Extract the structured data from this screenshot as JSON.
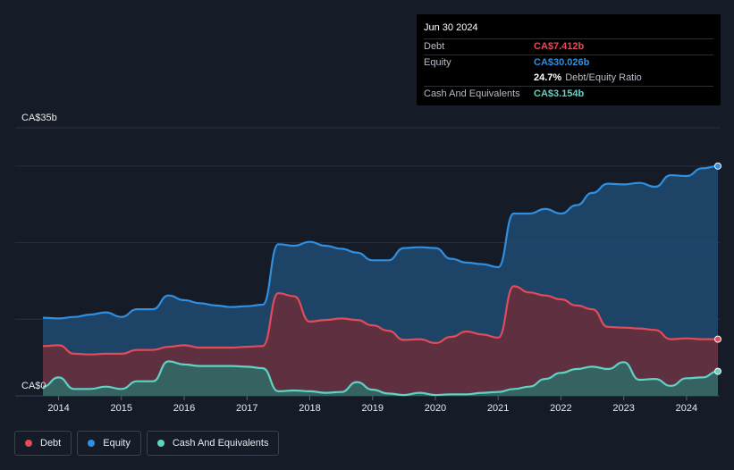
{
  "tooltip": {
    "date": "Jun 30 2024",
    "debt_label": "Debt",
    "debt_value": "CA$7.412b",
    "equity_label": "Equity",
    "equity_value": "CA$30.026b",
    "ratio_pct": "24.7%",
    "ratio_text": "Debt/Equity Ratio",
    "cash_label": "Cash And Equivalents",
    "cash_value": "CA$3.154b"
  },
  "legend": {
    "debt": "Debt",
    "equity": "Equity",
    "cash": "Cash And Equivalents"
  },
  "colors": {
    "debt": "#e24b5a",
    "equity": "#2f8fe0",
    "cash": "#5fd3c4",
    "background": "#151b27"
  },
  "chart_data": {
    "type": "area",
    "y_axis_labels": [
      "CA$35b",
      "CA$0"
    ],
    "ylim": [
      0,
      35
    ],
    "xlim": [
      2013.75,
      2024.5
    ],
    "x_tick_labels": [
      "2014",
      "2015",
      "2016",
      "2017",
      "2018",
      "2019",
      "2020",
      "2021",
      "2022",
      "2023",
      "2024"
    ],
    "x_ticks": [
      2014,
      2015,
      2016,
      2017,
      2018,
      2019,
      2020,
      2021,
      2022,
      2023,
      2024
    ],
    "grid": true,
    "legend_position": "bottom-left",
    "series": [
      {
        "name": "Equity",
        "key": "equity",
        "x": [
          2013.75,
          2014.0,
          2014.25,
          2014.5,
          2014.75,
          2015.0,
          2015.25,
          2015.5,
          2015.75,
          2016.0,
          2016.25,
          2016.5,
          2016.75,
          2017.0,
          2017.25,
          2017.5,
          2017.75,
          2018.0,
          2018.25,
          2018.5,
          2018.75,
          2019.0,
          2019.25,
          2019.5,
          2019.75,
          2020.0,
          2020.25,
          2020.5,
          2020.75,
          2021.0,
          2021.25,
          2021.5,
          2021.75,
          2022.0,
          2022.25,
          2022.5,
          2022.75,
          2023.0,
          2023.25,
          2023.5,
          2023.75,
          2024.0,
          2024.25,
          2024.5
        ],
        "values": [
          10.2,
          10.1,
          10.3,
          10.6,
          10.9,
          10.3,
          11.3,
          11.3,
          13.1,
          12.5,
          12.1,
          11.8,
          11.6,
          11.7,
          11.9,
          19.8,
          19.6,
          20.1,
          19.6,
          19.2,
          18.7,
          17.7,
          17.7,
          19.3,
          19.4,
          19.3,
          17.9,
          17.4,
          17.2,
          16.8,
          23.8,
          23.8,
          24.4,
          23.8,
          24.9,
          26.5,
          27.7,
          27.6,
          27.8,
          27.3,
          28.8,
          28.7,
          29.7,
          30.0
        ]
      },
      {
        "name": "Debt",
        "key": "debt",
        "x": [
          2013.75,
          2014.0,
          2014.25,
          2014.5,
          2014.75,
          2015.0,
          2015.25,
          2015.5,
          2015.75,
          2016.0,
          2016.25,
          2016.5,
          2016.75,
          2017.0,
          2017.25,
          2017.5,
          2017.75,
          2018.0,
          2018.25,
          2018.5,
          2018.75,
          2019.0,
          2019.25,
          2019.5,
          2019.75,
          2020.0,
          2020.25,
          2020.5,
          2020.75,
          2021.0,
          2021.25,
          2021.5,
          2021.75,
          2022.0,
          2022.25,
          2022.5,
          2022.75,
          2023.0,
          2023.25,
          2023.5,
          2023.75,
          2024.0,
          2024.25,
          2024.5
        ],
        "values": [
          6.5,
          6.6,
          5.5,
          5.4,
          5.5,
          5.5,
          6.0,
          6.0,
          6.4,
          6.6,
          6.3,
          6.3,
          6.3,
          6.4,
          6.5,
          13.4,
          13.0,
          9.7,
          9.9,
          10.1,
          9.9,
          9.2,
          8.5,
          7.3,
          7.4,
          6.9,
          7.7,
          8.4,
          8.0,
          7.6,
          14.3,
          13.5,
          13.1,
          12.6,
          11.8,
          11.3,
          9.0,
          8.9,
          8.8,
          8.6,
          7.4,
          7.5,
          7.4,
          7.4
        ]
      },
      {
        "name": "Cash And Equivalents",
        "key": "cash",
        "x": [
          2013.75,
          2014.0,
          2014.25,
          2014.5,
          2014.75,
          2015.0,
          2015.25,
          2015.5,
          2015.75,
          2016.0,
          2016.25,
          2016.5,
          2016.75,
          2017.0,
          2017.25,
          2017.5,
          2017.75,
          2018.0,
          2018.25,
          2018.5,
          2018.75,
          2019.0,
          2019.25,
          2019.5,
          2019.75,
          2020.0,
          2020.25,
          2020.5,
          2020.75,
          2021.0,
          2021.25,
          2021.5,
          2021.75,
          2022.0,
          2022.25,
          2022.5,
          2022.75,
          2023.0,
          2023.25,
          2023.5,
          2023.75,
          2024.0,
          2024.25,
          2024.5
        ],
        "values": [
          1.2,
          2.4,
          0.9,
          0.9,
          1.2,
          0.9,
          1.9,
          1.9,
          4.5,
          4.1,
          3.9,
          3.9,
          3.9,
          3.8,
          3.6,
          0.6,
          0.7,
          0.6,
          0.4,
          0.5,
          1.8,
          0.8,
          0.3,
          0.1,
          0.4,
          0.1,
          0.2,
          0.2,
          0.4,
          0.5,
          0.9,
          1.2,
          2.2,
          3.0,
          3.5,
          3.8,
          3.5,
          4.4,
          2.1,
          2.2,
          1.3,
          2.3,
          2.4,
          3.2
        ]
      }
    ]
  }
}
